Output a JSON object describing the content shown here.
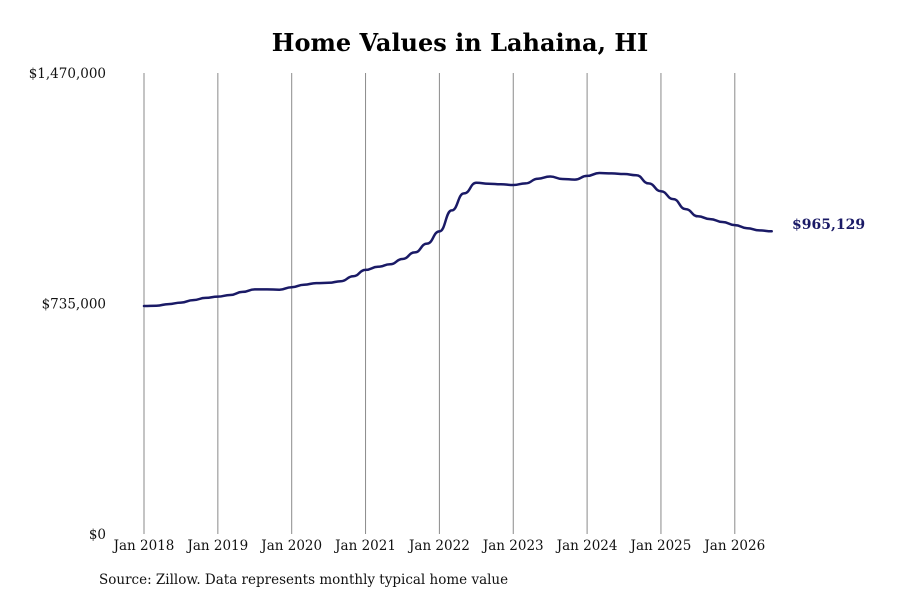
{
  "chart_data": {
    "type": "line",
    "title": "Home Values in Lahaina, HI",
    "xlabel": "",
    "ylabel": "",
    "ylim": [
      0,
      1470000
    ],
    "y_ticks": [
      "$0",
      "$735,000",
      "$1,470,000"
    ],
    "x_ticks": [
      "Jan 2018",
      "Jan 2019",
      "Jan 2020",
      "Jan 2021",
      "Jan 2022",
      "Jan 2023",
      "Jan 2024",
      "Jan 2025",
      "Jan 2026"
    ],
    "grid": "vertical",
    "line_color": "#1a1a66",
    "end_label": "$965,129",
    "series": [
      {
        "points": [
          [
            "2018-01",
            727000
          ],
          [
            "2018-03",
            728000
          ],
          [
            "2018-05",
            733000
          ],
          [
            "2018-07",
            738000
          ],
          [
            "2018-09",
            746000
          ],
          [
            "2018-11",
            753000
          ],
          [
            "2019-01",
            757000
          ],
          [
            "2019-03",
            762000
          ],
          [
            "2019-05",
            772000
          ],
          [
            "2019-07",
            780000
          ],
          [
            "2019-09",
            780000
          ],
          [
            "2019-11",
            779000
          ],
          [
            "2020-01",
            787000
          ],
          [
            "2020-03",
            795000
          ],
          [
            "2020-05",
            800000
          ],
          [
            "2020-07",
            801000
          ],
          [
            "2020-09",
            806000
          ],
          [
            "2020-11",
            822000
          ],
          [
            "2021-01",
            842000
          ],
          [
            "2021-03",
            852000
          ],
          [
            "2021-05",
            860000
          ],
          [
            "2021-07",
            877000
          ],
          [
            "2021-09",
            898000
          ],
          [
            "2021-11",
            926000
          ],
          [
            "2022-01",
            965000
          ],
          [
            "2022-03",
            1032000
          ],
          [
            "2022-05",
            1086000
          ],
          [
            "2022-07",
            1120000
          ],
          [
            "2022-09",
            1117000
          ],
          [
            "2022-11",
            1115000
          ],
          [
            "2023-01",
            1113000
          ],
          [
            "2023-03",
            1118000
          ],
          [
            "2023-05",
            1133000
          ],
          [
            "2023-07",
            1140000
          ],
          [
            "2023-09",
            1132000
          ],
          [
            "2023-11",
            1130000
          ],
          [
            "2024-01",
            1142000
          ],
          [
            "2024-03",
            1151000
          ],
          [
            "2024-05",
            1150000
          ],
          [
            "2024-07",
            1148000
          ],
          [
            "2024-09",
            1144000
          ],
          [
            "2024-11",
            1118000
          ],
          [
            "2025-01",
            1093000
          ],
          [
            "2025-03",
            1068000
          ],
          [
            "2025-05",
            1036000
          ],
          [
            "2025-07",
            1013000
          ],
          [
            "2025-09",
            1004000
          ],
          [
            "2025-11",
            995000
          ],
          [
            "2026-01",
            985000
          ],
          [
            "2026-03",
            975000
          ],
          [
            "2026-05",
            968000
          ],
          [
            "2026-07",
            965129
          ]
        ]
      }
    ]
  },
  "source": "Source: Zillow. Data represents monthly typical home value"
}
